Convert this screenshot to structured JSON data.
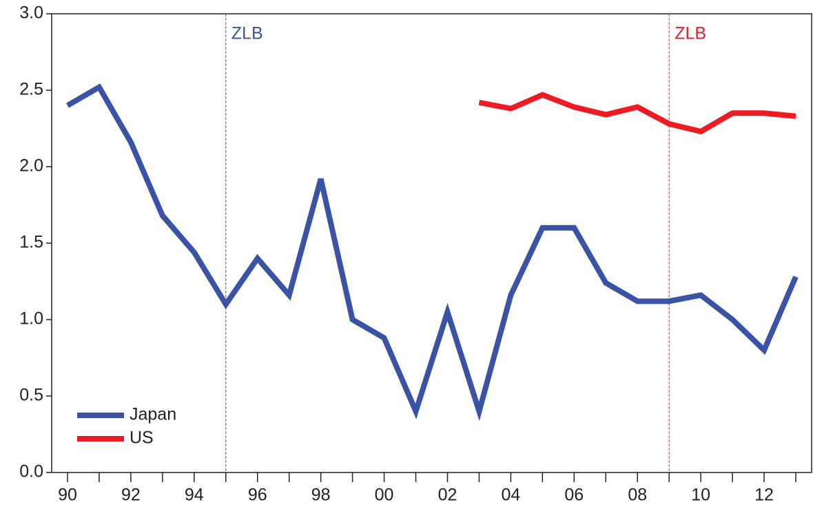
{
  "chart_data": {
    "type": "line",
    "x": [
      1990,
      1991,
      1992,
      1993,
      1994,
      1995,
      1996,
      1997,
      1998,
      1999,
      2000,
      2001,
      2002,
      2003,
      2004,
      2005,
      2006,
      2007,
      2008,
      2009,
      2010,
      2011,
      2012,
      2013
    ],
    "xlim": [
      1989.5,
      2013.5
    ],
    "xticks": [
      {
        "value": 1990,
        "label": "90"
      },
      {
        "value": 1992,
        "label": "92"
      },
      {
        "value": 1994,
        "label": "94"
      },
      {
        "value": 1996,
        "label": "96"
      },
      {
        "value": 1998,
        "label": "98"
      },
      {
        "value": 2000,
        "label": "00"
      },
      {
        "value": 2002,
        "label": "02"
      },
      {
        "value": 2004,
        "label": "04"
      },
      {
        "value": 2006,
        "label": "06"
      },
      {
        "value": 2008,
        "label": "08"
      },
      {
        "value": 2010,
        "label": "10"
      },
      {
        "value": 2012,
        "label": "12"
      }
    ],
    "xminorticks": [
      1991,
      1993,
      1995,
      1997,
      1999,
      2001,
      2003,
      2005,
      2007,
      2009,
      2011,
      2013
    ],
    "ylim": [
      0,
      3
    ],
    "yticks": [
      {
        "value": 0,
        "label": "0.0"
      },
      {
        "value": 0.5,
        "label": "0.5"
      },
      {
        "value": 1,
        "label": "1.0"
      },
      {
        "value": 1.5,
        "label": "1.5"
      },
      {
        "value": 2,
        "label": "2.0"
      },
      {
        "value": 2.5,
        "label": "2.5"
      },
      {
        "value": 3,
        "label": "3.0"
      }
    ],
    "series": [
      {
        "name": "Japan",
        "color": "#3a53a4",
        "values": [
          2.4,
          2.52,
          2.16,
          1.68,
          1.44,
          1.1,
          1.4,
          1.16,
          1.92,
          1.0,
          0.88,
          0.4,
          1.05,
          0.4,
          1.16,
          1.6,
          1.6,
          1.24,
          1.12,
          1.12,
          1.16,
          1.0,
          0.8,
          1.28
        ]
      },
      {
        "name": "US",
        "color": "#ed1c24",
        "values": [
          null,
          null,
          null,
          null,
          null,
          null,
          null,
          null,
          null,
          null,
          null,
          null,
          null,
          2.42,
          2.38,
          2.47,
          2.39,
          2.34,
          2.39,
          2.28,
          2.23,
          2.35,
          2.35,
          2.33
        ]
      }
    ],
    "annotations": [
      {
        "text": "ZLB",
        "x": 1995,
        "color": "#3a53a4"
      },
      {
        "text": "ZLB",
        "x": 2009,
        "color": "#ed1c24"
      }
    ],
    "legend": "lower-left"
  }
}
